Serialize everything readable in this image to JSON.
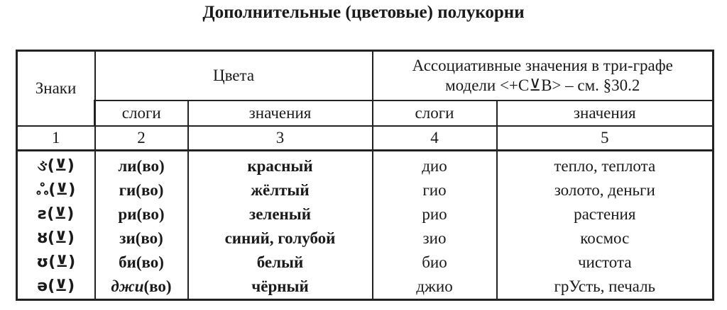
{
  "title": "Дополнительные (цветовые) полукорни",
  "header": {
    "signs": "Знаки",
    "colors": "Цвета",
    "assoc": "Ассоциативные значения в три-графе модели <+C⊻B> – см. §30.2",
    "syllables": "слоги",
    "meanings": "значения",
    "syllables2": "слоги",
    "meanings2": "значения",
    "numbers": [
      "1",
      "2",
      "3",
      "4",
      "5"
    ]
  },
  "rows": [
    {
      "sign": "ઙ(⊻)",
      "syl": "ли",
      "suffix": "(во)",
      "color": "красный",
      "assoc_syl": "дио",
      "assoc_meaning": "тепло, теплота"
    },
    {
      "sign": "ஃ(⊻)",
      "syl": "ги",
      "suffix": "(во)",
      "color": "жёлтый",
      "assoc_syl": "гио",
      "assoc_meaning": "золото, деньги"
    },
    {
      "sign": "ƨ(⊻)",
      "syl": "ри",
      "suffix": "(во)",
      "color": "зеленый",
      "assoc_syl": "рио",
      "assoc_meaning": "растения"
    },
    {
      "sign": "ȣ(⊻)",
      "syl": "зи",
      "suffix": "(во)",
      "color": "синий, голубой",
      "assoc_syl": "зио",
      "assoc_meaning": "космос"
    },
    {
      "sign": "ʊ(⊻)",
      "syl": "би",
      "suffix": "(во)",
      "color": "белый",
      "assoc_syl": "био",
      "assoc_meaning": "чистота"
    },
    {
      "sign": "ə(⊻)",
      "syl": "джи",
      "suffix": "(во)",
      "color": "чёрный",
      "assoc_syl": "джио",
      "assoc_meaning": "грУсть, печаль"
    }
  ]
}
